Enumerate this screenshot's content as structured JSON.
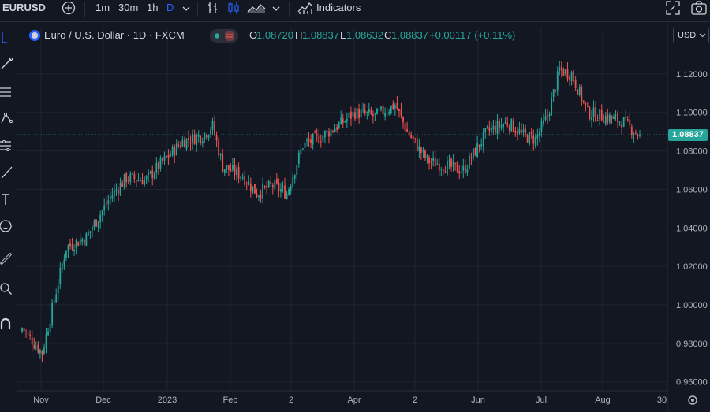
{
  "toolbar": {
    "symbol": "EURUSD",
    "add_symbol_icon": "plus-circle-icon",
    "intervals": [
      "1m",
      "30m",
      "1h",
      "D"
    ],
    "active_interval": "D",
    "interval_dropdown_icon": "chevron-down-icon",
    "bar_style_icon": "bar-style-icon",
    "candle_style_icon": "candlestick-icon",
    "area_style_icon": "area-chart-icon",
    "indicators_label": "Indicators",
    "indicators_icon": "indicators-icon",
    "fullscreen_icon": "fullscreen-icon",
    "snapshot_icon": "camera-icon"
  },
  "left_toolbar": {
    "icons": [
      "cursor-icon",
      "trend-line-icon",
      "fib-icon",
      "pattern-icon",
      "forecast-icon",
      "brush-icon",
      "text-icon",
      "emoji-icon",
      "ruler-icon",
      "zoom-icon",
      "magnet-icon"
    ]
  },
  "legend": {
    "title": "Euro / U.S. Dollar · 1D · FXCM",
    "o_key": "O",
    "o_val": "1.08720",
    "h_key": "H",
    "h_val": "1.08837",
    "l_key": "L",
    "l_val": "1.08632",
    "c_key": "C",
    "c_val": "1.08837",
    "change": "+0.00117 (+0.11%)"
  },
  "currency_button": "USD",
  "last_price": "1.08837",
  "colors": {
    "up": "#26a69a",
    "down": "#ef5350",
    "background": "#131722",
    "grid": "#1f2431"
  },
  "chart_data": {
    "type": "candlestick",
    "symbol": "EURUSD",
    "interval": "1D",
    "x_tick_labels": [
      "Nov",
      "Dec",
      "2023",
      "Feb",
      "2",
      "Apr",
      "2",
      "Jun",
      "Jul",
      "Aug",
      "30"
    ],
    "y_tick_labels": [
      "0.96000",
      "0.98000",
      "1.00000",
      "1.02000",
      "1.04000",
      "1.06000",
      "1.08000",
      "1.10000",
      "1.12000"
    ],
    "ylim": [
      0.9558,
      1.1355
    ],
    "last_price": 1.08837,
    "grid": true,
    "key_closes": [
      [
        0,
        0.988
      ],
      [
        10,
        0.975
      ],
      [
        22,
        1.03
      ],
      [
        32,
        1.035
      ],
      [
        44,
        1.056
      ],
      [
        52,
        1.066
      ],
      [
        62,
        1.065
      ],
      [
        68,
        1.072
      ],
      [
        80,
        1.085
      ],
      [
        90,
        1.088
      ],
      [
        95,
        1.093
      ],
      [
        100,
        1.072
      ],
      [
        110,
        1.067
      ],
      [
        117,
        1.058
      ],
      [
        125,
        1.062
      ],
      [
        132,
        1.058
      ],
      [
        140,
        1.083
      ],
      [
        150,
        1.088
      ],
      [
        160,
        1.095
      ],
      [
        166,
        1.1
      ],
      [
        176,
        1.098
      ],
      [
        186,
        1.104
      ],
      [
        192,
        1.09
      ],
      [
        202,
        1.075
      ],
      [
        212,
        1.072
      ],
      [
        220,
        1.07
      ],
      [
        232,
        1.09
      ],
      [
        242,
        1.095
      ],
      [
        250,
        1.088
      ],
      [
        256,
        1.086
      ],
      [
        262,
        1.098
      ],
      [
        268,
        1.122
      ],
      [
        274,
        1.12
      ],
      [
        282,
        1.1
      ],
      [
        290,
        1.098
      ],
      [
        300,
        1.095
      ],
      [
        308,
        1.088
      ]
    ]
  }
}
